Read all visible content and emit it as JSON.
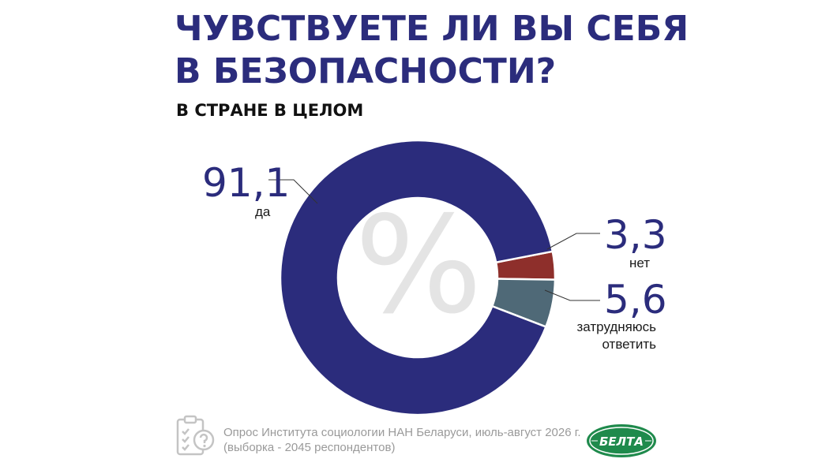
{
  "header": {
    "title_line1": "ЧУВСТВУЕТЕ ЛИ ВЫ СЕБЯ",
    "title_line2": "В БЕЗОПАСНОСТИ?",
    "subtitle": "В СТРАНЕ В ЦЕЛОМ"
  },
  "chart_data": {
    "type": "pie",
    "title": "ЧУВСТВУЕТЕ ЛИ ВЫ СЕБЯ В БЕЗОПАСНОСТИ?",
    "subtitle": "В СТРАНЕ В ЦЕЛОМ",
    "center_symbol": "%",
    "slices": [
      {
        "label": "да",
        "value": 91.1,
        "display": "91,1",
        "color": "#2b2c7c"
      },
      {
        "label": "нет",
        "value": 3.3,
        "display": "3,3",
        "color": "#8e2f2b"
      },
      {
        "label": "затрудняюсь ответить",
        "value": 5.6,
        "display": "5,6",
        "color": "#4f6977"
      }
    ]
  },
  "labels": {
    "da_value": "91,1",
    "da_label": "да",
    "net_value": "3,3",
    "net_label": "нет",
    "zatr_value": "5,6",
    "zatr_label_line1": "затрудняюсь",
    "zatr_label_line2": "ответить"
  },
  "footer": {
    "line1": "Опрос Института социологии НАН Беларуси, июль-август 2026 г.",
    "line2": "(выборка - 2045 респондентов)",
    "logo_text": "БЕЛТА",
    "icon": "survey-clipboard-icon",
    "logo_color": "#1f8a4c"
  }
}
